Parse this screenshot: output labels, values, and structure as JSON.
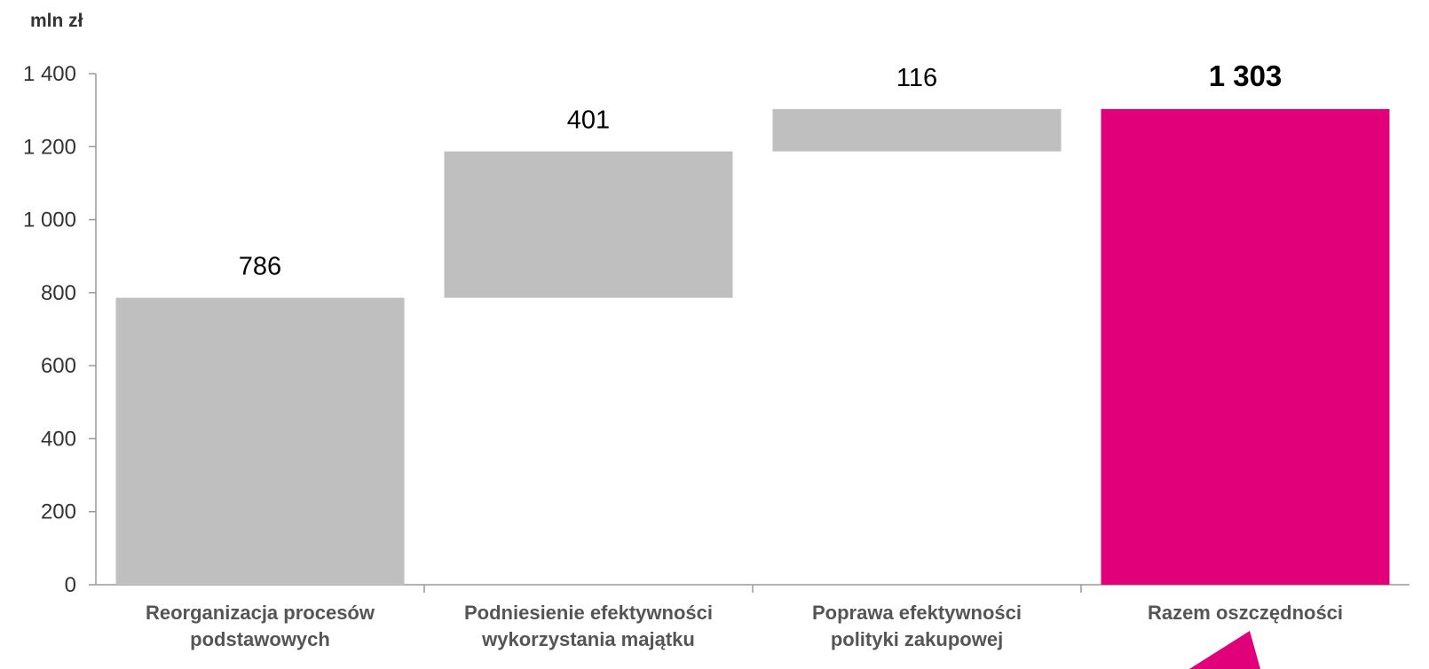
{
  "chart_data": {
    "type": "bar",
    "subtype": "waterfall",
    "ylabel": "mln zł",
    "ylim": [
      0,
      1400
    ],
    "yticks": [
      0,
      200,
      400,
      600,
      800,
      1000,
      1200,
      1400
    ],
    "ytick_labels": [
      "0",
      "200",
      "400",
      "600",
      "800",
      "1 000",
      "1 200",
      "1 400"
    ],
    "grid": false,
    "categories": [
      [
        "Reorganizacja procesów",
        "podstawowych"
      ],
      [
        "Podniesienie efektywności",
        "wykorzystania majątku"
      ],
      [
        "Poprawa efektywności",
        "polityki zakupowej"
      ],
      [
        "Razem oszczędności"
      ]
    ],
    "bars": [
      {
        "base": 0,
        "value": 786,
        "label": "786",
        "color": "#bfbfbf",
        "total": false
      },
      {
        "base": 786,
        "value": 401,
        "label": "401",
        "color": "#bfbfbf",
        "total": false
      },
      {
        "base": 1187,
        "value": 116,
        "label": "116",
        "color": "#bfbfbf",
        "total": false
      },
      {
        "base": 0,
        "value": 1303,
        "label": "1 303",
        "color": "#e2007a",
        "total": true
      }
    ],
    "accent_color": "#e2007a"
  }
}
